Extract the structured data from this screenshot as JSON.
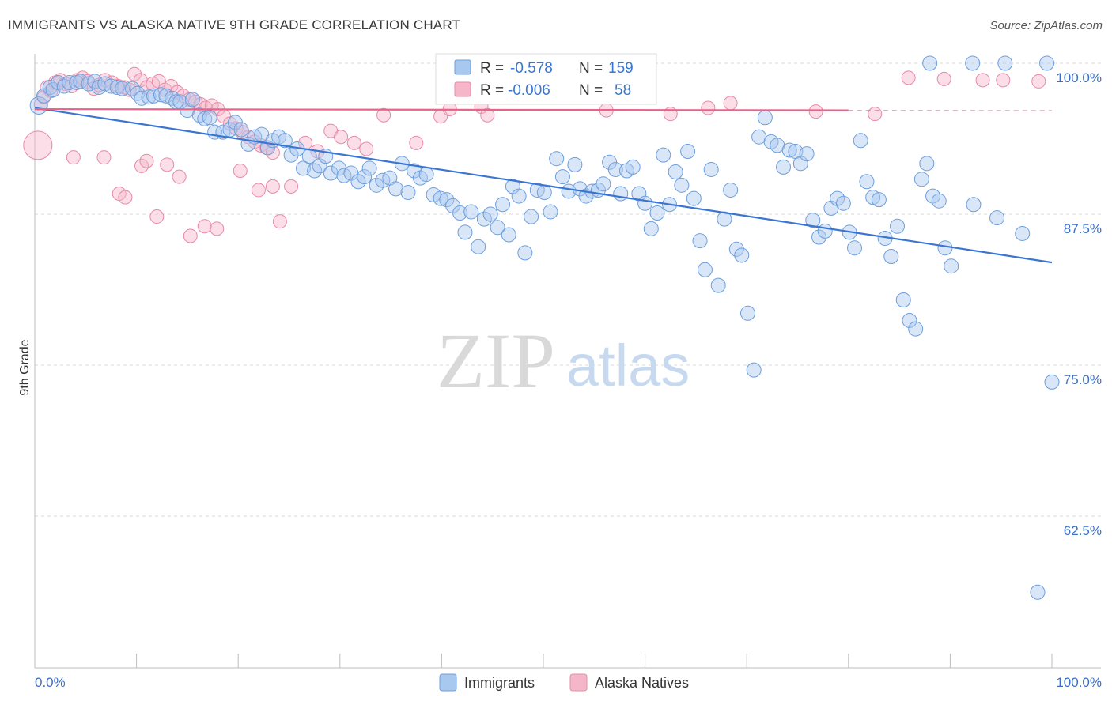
{
  "title": "IMMIGRANTS VS ALASKA NATIVE 9TH GRADE CORRELATION CHART",
  "source": "Source: ZipAtlas.com",
  "watermark": {
    "zip": "ZIP",
    "atlas": "atlas"
  },
  "legend_box": {
    "rows": [
      {
        "r_label": "R =",
        "r_value": "-0.578",
        "n_label": "N =",
        "n_value": "159"
      },
      {
        "r_label": "R =",
        "r_value": "-0.006",
        "n_label": "N =",
        "n_value": "58"
      }
    ]
  },
  "colors": {
    "blue_fill": "#a8c8f0",
    "blue_stroke": "#6d9fdc",
    "blue_line": "#3a76d1",
    "pink_fill": "#f6b6c9",
    "pink_stroke": "#e98aa7",
    "pink_line": "#e8628a",
    "tick_text": "#3b6fc4",
    "grid": "#d9d9d9"
  },
  "chart_data": {
    "type": "scatter",
    "title": "IMMIGRANTS VS ALASKA NATIVE 9TH GRADE CORRELATION CHART",
    "xlabel": "",
    "ylabel": "9th Grade",
    "xlim": [
      0,
      100
    ],
    "ylim": [
      50,
      101
    ],
    "x_tick_labels": [
      "0.0%",
      "100.0%"
    ],
    "y_ticks": [
      100.0,
      87.5,
      75.0,
      62.5
    ],
    "y_tick_labels": [
      "100.0%",
      "87.5%",
      "75.0%",
      "62.5%"
    ],
    "grid": "horizontal dashed",
    "legend_position": "bottom",
    "series": [
      {
        "name": "Immigrants",
        "R": -0.578,
        "N": 159,
        "trend": {
          "x": [
            0,
            100
          ],
          "y": [
            96.3,
            83.5
          ]
        },
        "points": [
          [
            0.4,
            96.5
          ],
          [
            0.9,
            97.3
          ],
          [
            1.5,
            98.0
          ],
          [
            1.8,
            97.8
          ],
          [
            2.3,
            98.4
          ],
          [
            2.9,
            98.1
          ],
          [
            3.4,
            98.4
          ],
          [
            4.1,
            98.4
          ],
          [
            4.5,
            98.5
          ],
          [
            5.3,
            98.3
          ],
          [
            5.9,
            98.5
          ],
          [
            6.3,
            98.0
          ],
          [
            6.9,
            98.3
          ],
          [
            7.5,
            98.1
          ],
          [
            8.1,
            98.0
          ],
          [
            8.6,
            97.9
          ],
          [
            9.6,
            97.9
          ],
          [
            10.1,
            97.5
          ],
          [
            10.5,
            97.1
          ],
          [
            11.2,
            97.2
          ],
          [
            11.7,
            97.3
          ],
          [
            12.4,
            97.4
          ],
          [
            12.9,
            97.3
          ],
          [
            13.5,
            97.1
          ],
          [
            13.9,
            96.8
          ],
          [
            14.3,
            96.8
          ],
          [
            15.0,
            96.1
          ],
          [
            15.5,
            97.0
          ],
          [
            16.2,
            95.7
          ],
          [
            16.7,
            95.4
          ],
          [
            17.2,
            95.5
          ],
          [
            17.7,
            94.3
          ],
          [
            18.5,
            94.3
          ],
          [
            19.2,
            94.5
          ],
          [
            19.7,
            95.1
          ],
          [
            20.3,
            94.5
          ],
          [
            21.0,
            93.3
          ],
          [
            21.6,
            93.9
          ],
          [
            22.3,
            94.1
          ],
          [
            22.9,
            93.0
          ],
          [
            23.4,
            93.6
          ],
          [
            24.0,
            93.9
          ],
          [
            24.6,
            93.6
          ],
          [
            25.2,
            92.4
          ],
          [
            25.8,
            92.9
          ],
          [
            26.4,
            91.3
          ],
          [
            27.0,
            92.3
          ],
          [
            27.5,
            91.1
          ],
          [
            28.0,
            91.5
          ],
          [
            28.6,
            92.3
          ],
          [
            29.1,
            90.9
          ],
          [
            29.9,
            91.3
          ],
          [
            30.4,
            90.7
          ],
          [
            31.1,
            90.9
          ],
          [
            31.8,
            90.2
          ],
          [
            32.4,
            90.6
          ],
          [
            32.9,
            91.3
          ],
          [
            33.6,
            89.9
          ],
          [
            34.2,
            90.3
          ],
          [
            34.9,
            90.5
          ],
          [
            35.5,
            89.6
          ],
          [
            36.1,
            91.7
          ],
          [
            36.7,
            89.3
          ],
          [
            37.3,
            91.1
          ],
          [
            37.9,
            90.5
          ],
          [
            38.5,
            90.8
          ],
          [
            39.2,
            89.1
          ],
          [
            39.9,
            88.8
          ],
          [
            40.5,
            88.7
          ],
          [
            41.1,
            88.2
          ],
          [
            41.8,
            87.6
          ],
          [
            42.3,
            86.0
          ],
          [
            42.9,
            87.7
          ],
          [
            43.6,
            84.8
          ],
          [
            44.2,
            87.1
          ],
          [
            44.8,
            87.5
          ],
          [
            45.5,
            86.4
          ],
          [
            46.0,
            88.3
          ],
          [
            46.6,
            85.8
          ],
          [
            47.0,
            89.8
          ],
          [
            47.6,
            89.0
          ],
          [
            48.2,
            84.3
          ],
          [
            48.8,
            87.3
          ],
          [
            49.4,
            89.5
          ],
          [
            50.1,
            89.3
          ],
          [
            50.7,
            87.7
          ],
          [
            51.3,
            92.1
          ],
          [
            51.9,
            90.6
          ],
          [
            52.5,
            89.4
          ],
          [
            53.1,
            91.6
          ],
          [
            53.6,
            89.6
          ],
          [
            54.2,
            89.0
          ],
          [
            54.8,
            89.4
          ],
          [
            55.4,
            89.5
          ],
          [
            55.9,
            90.0
          ],
          [
            56.5,
            91.8
          ],
          [
            57.1,
            91.2
          ],
          [
            57.6,
            89.2
          ],
          [
            58.2,
            91.1
          ],
          [
            58.8,
            91.4
          ],
          [
            59.4,
            89.2
          ],
          [
            60.0,
            88.4
          ],
          [
            60.6,
            86.3
          ],
          [
            61.2,
            87.6
          ],
          [
            61.8,
            92.4
          ],
          [
            62.4,
            88.3
          ],
          [
            63.0,
            91.0
          ],
          [
            63.6,
            89.9
          ],
          [
            64.2,
            92.7
          ],
          [
            64.8,
            88.8
          ],
          [
            65.4,
            85.3
          ],
          [
            65.9,
            82.9
          ],
          [
            66.5,
            91.2
          ],
          [
            67.2,
            81.6
          ],
          [
            67.8,
            87.1
          ],
          [
            68.4,
            89.5
          ],
          [
            69.0,
            84.6
          ],
          [
            69.5,
            84.1
          ],
          [
            70.1,
            79.3
          ],
          [
            70.7,
            74.6
          ],
          [
            71.2,
            93.9
          ],
          [
            71.8,
            95.5
          ],
          [
            72.4,
            93.5
          ],
          [
            73.0,
            93.2
          ],
          [
            73.6,
            91.4
          ],
          [
            74.2,
            92.8
          ],
          [
            74.8,
            92.7
          ],
          [
            75.3,
            91.7
          ],
          [
            75.9,
            92.5
          ],
          [
            76.5,
            87.0
          ],
          [
            77.1,
            85.6
          ],
          [
            77.7,
            86.1
          ],
          [
            78.3,
            88.0
          ],
          [
            78.9,
            88.8
          ],
          [
            79.5,
            88.4
          ],
          [
            80.1,
            86.0
          ],
          [
            80.6,
            84.7
          ],
          [
            81.2,
            93.6
          ],
          [
            81.8,
            90.2
          ],
          [
            82.4,
            88.9
          ],
          [
            83.0,
            88.7
          ],
          [
            83.6,
            85.5
          ],
          [
            84.2,
            84.0
          ],
          [
            84.8,
            86.5
          ],
          [
            85.4,
            80.4
          ],
          [
            86.0,
            78.7
          ],
          [
            86.6,
            78.0
          ],
          [
            87.2,
            90.4
          ],
          [
            87.7,
            91.7
          ],
          [
            88.3,
            89.0
          ],
          [
            88.9,
            88.6
          ],
          [
            89.5,
            84.7
          ],
          [
            90.1,
            83.2
          ],
          [
            92.3,
            88.3
          ],
          [
            94.6,
            87.2
          ],
          [
            97.1,
            85.9
          ],
          [
            100.0,
            73.6
          ],
          [
            88.0,
            100.0
          ],
          [
            92.2,
            100.0
          ],
          [
            95.4,
            100.0
          ],
          [
            99.5,
            100.0
          ],
          [
            98.6,
            56.2
          ]
        ]
      },
      {
        "name": "Alaska Natives",
        "R": -0.006,
        "N": 58,
        "trend": {
          "x": [
            0,
            80
          ],
          "y": [
            96.2,
            96.1
          ]
        },
        "points": [
          [
            0.3,
            93.2
          ],
          [
            0.6,
            96.6
          ],
          [
            0.9,
            97.2
          ],
          [
            1.2,
            98.0
          ],
          [
            1.6,
            97.7
          ],
          [
            2.0,
            98.4
          ],
          [
            2.5,
            98.6
          ],
          [
            3.0,
            98.3
          ],
          [
            3.6,
            98.1
          ],
          [
            4.2,
            98.6
          ],
          [
            4.7,
            98.8
          ],
          [
            5.2,
            98.5
          ],
          [
            5.8,
            97.9
          ],
          [
            6.3,
            98.2
          ],
          [
            6.9,
            98.6
          ],
          [
            7.6,
            98.4
          ],
          [
            8.2,
            98.1
          ],
          [
            8.8,
            98.0
          ],
          [
            9.3,
            97.8
          ],
          [
            9.8,
            99.1
          ],
          [
            10.4,
            98.6
          ],
          [
            11.0,
            98.0
          ],
          [
            11.6,
            98.3
          ],
          [
            12.2,
            98.5
          ],
          [
            12.8,
            97.8
          ],
          [
            13.4,
            98.1
          ],
          [
            14.0,
            97.6
          ],
          [
            14.6,
            97.3
          ],
          [
            15.2,
            97.0
          ],
          [
            15.8,
            96.8
          ],
          [
            16.3,
            96.6
          ],
          [
            16.8,
            96.3
          ],
          [
            17.4,
            96.5
          ],
          [
            18.0,
            96.2
          ],
          [
            18.6,
            95.6
          ],
          [
            19.2,
            95.0
          ],
          [
            19.8,
            94.6
          ],
          [
            20.4,
            94.3
          ],
          [
            21.0,
            93.9
          ],
          [
            21.6,
            93.5
          ],
          [
            22.2,
            93.2
          ],
          [
            22.8,
            93.0
          ],
          [
            23.4,
            92.6
          ],
          [
            3.8,
            92.2
          ],
          [
            6.8,
            92.2
          ],
          [
            8.3,
            89.2
          ],
          [
            8.9,
            88.9
          ],
          [
            10.5,
            91.5
          ],
          [
            11.0,
            91.9
          ],
          [
            12.0,
            87.3
          ],
          [
            13.0,
            91.6
          ],
          [
            14.2,
            90.6
          ],
          [
            15.3,
            85.7
          ],
          [
            16.7,
            86.5
          ],
          [
            17.9,
            86.3
          ],
          [
            20.2,
            91.1
          ],
          [
            22.0,
            89.5
          ],
          [
            23.4,
            89.8
          ],
          [
            24.1,
            86.9
          ],
          [
            25.2,
            89.8
          ],
          [
            26.6,
            93.4
          ],
          [
            27.8,
            92.7
          ],
          [
            29.1,
            94.4
          ],
          [
            30.1,
            93.9
          ],
          [
            31.4,
            93.4
          ],
          [
            32.6,
            92.9
          ],
          [
            34.3,
            95.7
          ],
          [
            37.5,
            93.4
          ],
          [
            39.9,
            95.6
          ],
          [
            40.8,
            96.2
          ],
          [
            43.9,
            96.4
          ],
          [
            44.5,
            95.7
          ],
          [
            56.2,
            96.1
          ],
          [
            62.5,
            95.8
          ],
          [
            66.2,
            96.3
          ],
          [
            68.4,
            96.7
          ],
          [
            76.8,
            96.0
          ],
          [
            82.6,
            95.8
          ],
          [
            85.9,
            98.8
          ],
          [
            89.4,
            98.7
          ],
          [
            93.2,
            98.6
          ],
          [
            95.2,
            98.6
          ],
          [
            98.7,
            98.5
          ]
        ]
      }
    ]
  },
  "bottom_legend": {
    "items": [
      "Immigrants",
      "Alaska Natives"
    ]
  }
}
